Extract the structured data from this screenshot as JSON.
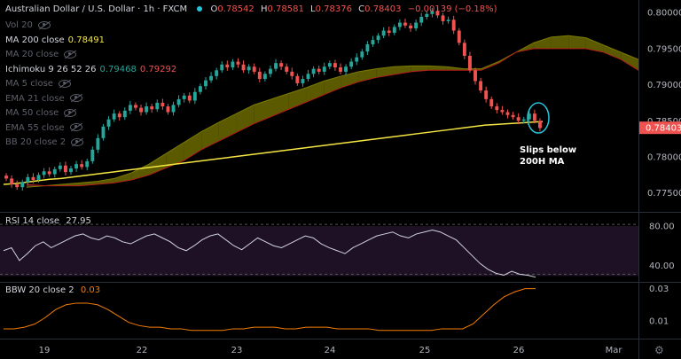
{
  "header": {
    "title": "Australian Dollar / U.S. Dollar · 1h · FXCM",
    "ohlc": {
      "o_label": "O",
      "o": "0.78542",
      "h_label": "H",
      "h": "0.78581",
      "l_label": "L",
      "l": "0.78376",
      "c_label": "C",
      "c": "0.78403",
      "change": "−0.00139 (−0.18%)"
    }
  },
  "legend": [
    {
      "name": "Vol 20",
      "value": "",
      "value2": "",
      "hidden": true
    },
    {
      "name": "MA 200 close",
      "value": "0.78491",
      "value2": "",
      "hidden": false
    },
    {
      "name": "MA 20 close",
      "value": "",
      "value2": "",
      "hidden": true
    },
    {
      "name": "Ichimoku 9 26 52 26",
      "value": "0.79468",
      "value2": "0.79292",
      "hidden": false
    },
    {
      "name": "MA 5 close",
      "value": "",
      "value2": "",
      "hidden": true
    },
    {
      "name": "EMA 21 close",
      "value": "",
      "value2": "",
      "hidden": true
    },
    {
      "name": "MA 50 close",
      "value": "",
      "value2": "",
      "hidden": true
    },
    {
      "name": "EMA 55 close",
      "value": "",
      "value2": "",
      "hidden": true
    },
    {
      "name": "BB 20 close 2",
      "value": "",
      "value2": "",
      "hidden": true
    }
  ],
  "colors": {
    "up": "#26a69a",
    "down": "#ef5350",
    "ma200": "#f5e642",
    "cloud_bull": "#6b6a00",
    "cloud_bear": "#6b2a2a",
    "rsi_line": "#d1d4dc",
    "rsi_band": "#1e1126",
    "bbw_line": "#f57c00",
    "last_price": "#ef5350",
    "annot_ring": "#26c6da"
  },
  "annotation": {
    "line1": "Slips below",
    "line2": "200H MA"
  },
  "rsi": {
    "label": "RSI 14 close",
    "value": "27.95"
  },
  "bbw": {
    "label": "BBW 20 close 2",
    "value": "0.03"
  },
  "last_price_label": "0.78403",
  "chart_data": [
    {
      "type": "candlestick",
      "title": "Australian Dollar / U.S. Dollar · 1h · FXCM",
      "x_ticks": [
        "19",
        "22",
        "23",
        "24",
        "25",
        "26",
        "Mar"
      ],
      "y_ticks": [
        "0.80000",
        "0.79500",
        "0.79000",
        "0.78500",
        "0.78000",
        "0.77500"
      ],
      "ylim": [
        0.773,
        0.801
      ],
      "grid": false,
      "close": [
        0.777,
        0.7762,
        0.7758,
        0.7765,
        0.7772,
        0.7768,
        0.7775,
        0.778,
        0.7776,
        0.7783,
        0.7788,
        0.7779,
        0.7784,
        0.779,
        0.7786,
        0.7794,
        0.781,
        0.7826,
        0.7842,
        0.7852,
        0.786,
        0.7855,
        0.7864,
        0.7872,
        0.7868,
        0.7862,
        0.787,
        0.7866,
        0.7875,
        0.787,
        0.7862,
        0.7872,
        0.788,
        0.7885,
        0.7878,
        0.789,
        0.7898,
        0.7906,
        0.7912,
        0.792,
        0.7928,
        0.7924,
        0.7932,
        0.7928,
        0.792,
        0.7925,
        0.7918,
        0.7908,
        0.7915,
        0.7922,
        0.793,
        0.7925,
        0.7918,
        0.7912,
        0.7902,
        0.7908,
        0.7915,
        0.7922,
        0.7918,
        0.7925,
        0.793,
        0.7924,
        0.7918,
        0.7925,
        0.7932,
        0.7938,
        0.7946,
        0.7956,
        0.7962,
        0.7968,
        0.7975,
        0.7972,
        0.798,
        0.7986,
        0.7982,
        0.7978,
        0.7986,
        0.7994,
        0.7998,
        0.8002,
        0.7996,
        0.7988,
        0.799,
        0.7975,
        0.7958,
        0.794,
        0.792,
        0.7905,
        0.7892,
        0.788,
        0.787,
        0.7865,
        0.7862,
        0.7858,
        0.7855,
        0.785,
        0.7852,
        0.786,
        0.785,
        0.784
      ],
      "ma200": [
        0.7762,
        0.7763,
        0.7765,
        0.7767,
        0.7769,
        0.777,
        0.7772,
        0.7774,
        0.7776,
        0.7778,
        0.778,
        0.7782,
        0.7784,
        0.7786,
        0.7788,
        0.779,
        0.7792,
        0.7794,
        0.7796,
        0.7798,
        0.78,
        0.7802,
        0.7804,
        0.7806,
        0.7808,
        0.781,
        0.7812,
        0.7814,
        0.7816,
        0.7818,
        0.782,
        0.7822,
        0.7824,
        0.7826,
        0.7828,
        0.783,
        0.7832,
        0.7834,
        0.7836,
        0.7838,
        0.784,
        0.7842,
        0.7844,
        0.7845,
        0.7846,
        0.7847,
        0.7848,
        0.7849
      ],
      "cloud_a": [
        0.7758,
        0.776,
        0.7762,
        0.7764,
        0.7766,
        0.777,
        0.7778,
        0.779,
        0.7805,
        0.782,
        0.7835,
        0.7848,
        0.786,
        0.7872,
        0.788,
        0.7888,
        0.7896,
        0.7905,
        0.7912,
        0.7918,
        0.7922,
        0.7925,
        0.7926,
        0.7926,
        0.7925,
        0.7922,
        0.7922,
        0.7932,
        0.7945,
        0.7958,
        0.7966,
        0.7968,
        0.7965,
        0.7955,
        0.7945,
        0.7935
      ],
      "cloud_b": [
        0.7762,
        0.776,
        0.776,
        0.776,
        0.7762,
        0.7764,
        0.7768,
        0.7775,
        0.7785,
        0.7795,
        0.781,
        0.7822,
        0.7834,
        0.7846,
        0.7856,
        0.7866,
        0.7876,
        0.7886,
        0.7896,
        0.7904,
        0.791,
        0.7914,
        0.7918,
        0.792,
        0.792,
        0.792,
        0.792,
        0.793,
        0.7945,
        0.795,
        0.795,
        0.795,
        0.795,
        0.7945,
        0.7935,
        0.792
      ]
    },
    {
      "type": "line",
      "title": "RSI 14 close",
      "y_ticks": [
        "80.00",
        "40.00"
      ],
      "ylim": [
        25,
        90
      ],
      "values": [
        55,
        58,
        45,
        52,
        60,
        64,
        58,
        62,
        66,
        70,
        72,
        68,
        66,
        70,
        68,
        64,
        62,
        66,
        70,
        72,
        68,
        64,
        58,
        55,
        60,
        66,
        70,
        72,
        66,
        60,
        56,
        62,
        68,
        64,
        60,
        58,
        62,
        66,
        70,
        68,
        62,
        58,
        55,
        52,
        58,
        62,
        66,
        70,
        72,
        74,
        70,
        68,
        72,
        74,
        76,
        74,
        70,
        66,
        58,
        50,
        42,
        36,
        32,
        30,
        34,
        31,
        30,
        28
      ]
    },
    {
      "type": "line",
      "title": "BBW 20 close 2",
      "y_ticks": [
        "0.03",
        "0.01"
      ],
      "ylim": [
        0,
        0.032
      ],
      "values": [
        0.005,
        0.005,
        0.006,
        0.008,
        0.012,
        0.017,
        0.02,
        0.021,
        0.021,
        0.02,
        0.017,
        0.013,
        0.009,
        0.007,
        0.006,
        0.006,
        0.005,
        0.005,
        0.004,
        0.004,
        0.004,
        0.004,
        0.005,
        0.005,
        0.006,
        0.006,
        0.006,
        0.005,
        0.005,
        0.006,
        0.006,
        0.006,
        0.005,
        0.005,
        0.005,
        0.005,
        0.004,
        0.004,
        0.004,
        0.004,
        0.004,
        0.004,
        0.005,
        0.005,
        0.005,
        0.008,
        0.014,
        0.02,
        0.025,
        0.028,
        0.03,
        0.03
      ]
    }
  ]
}
